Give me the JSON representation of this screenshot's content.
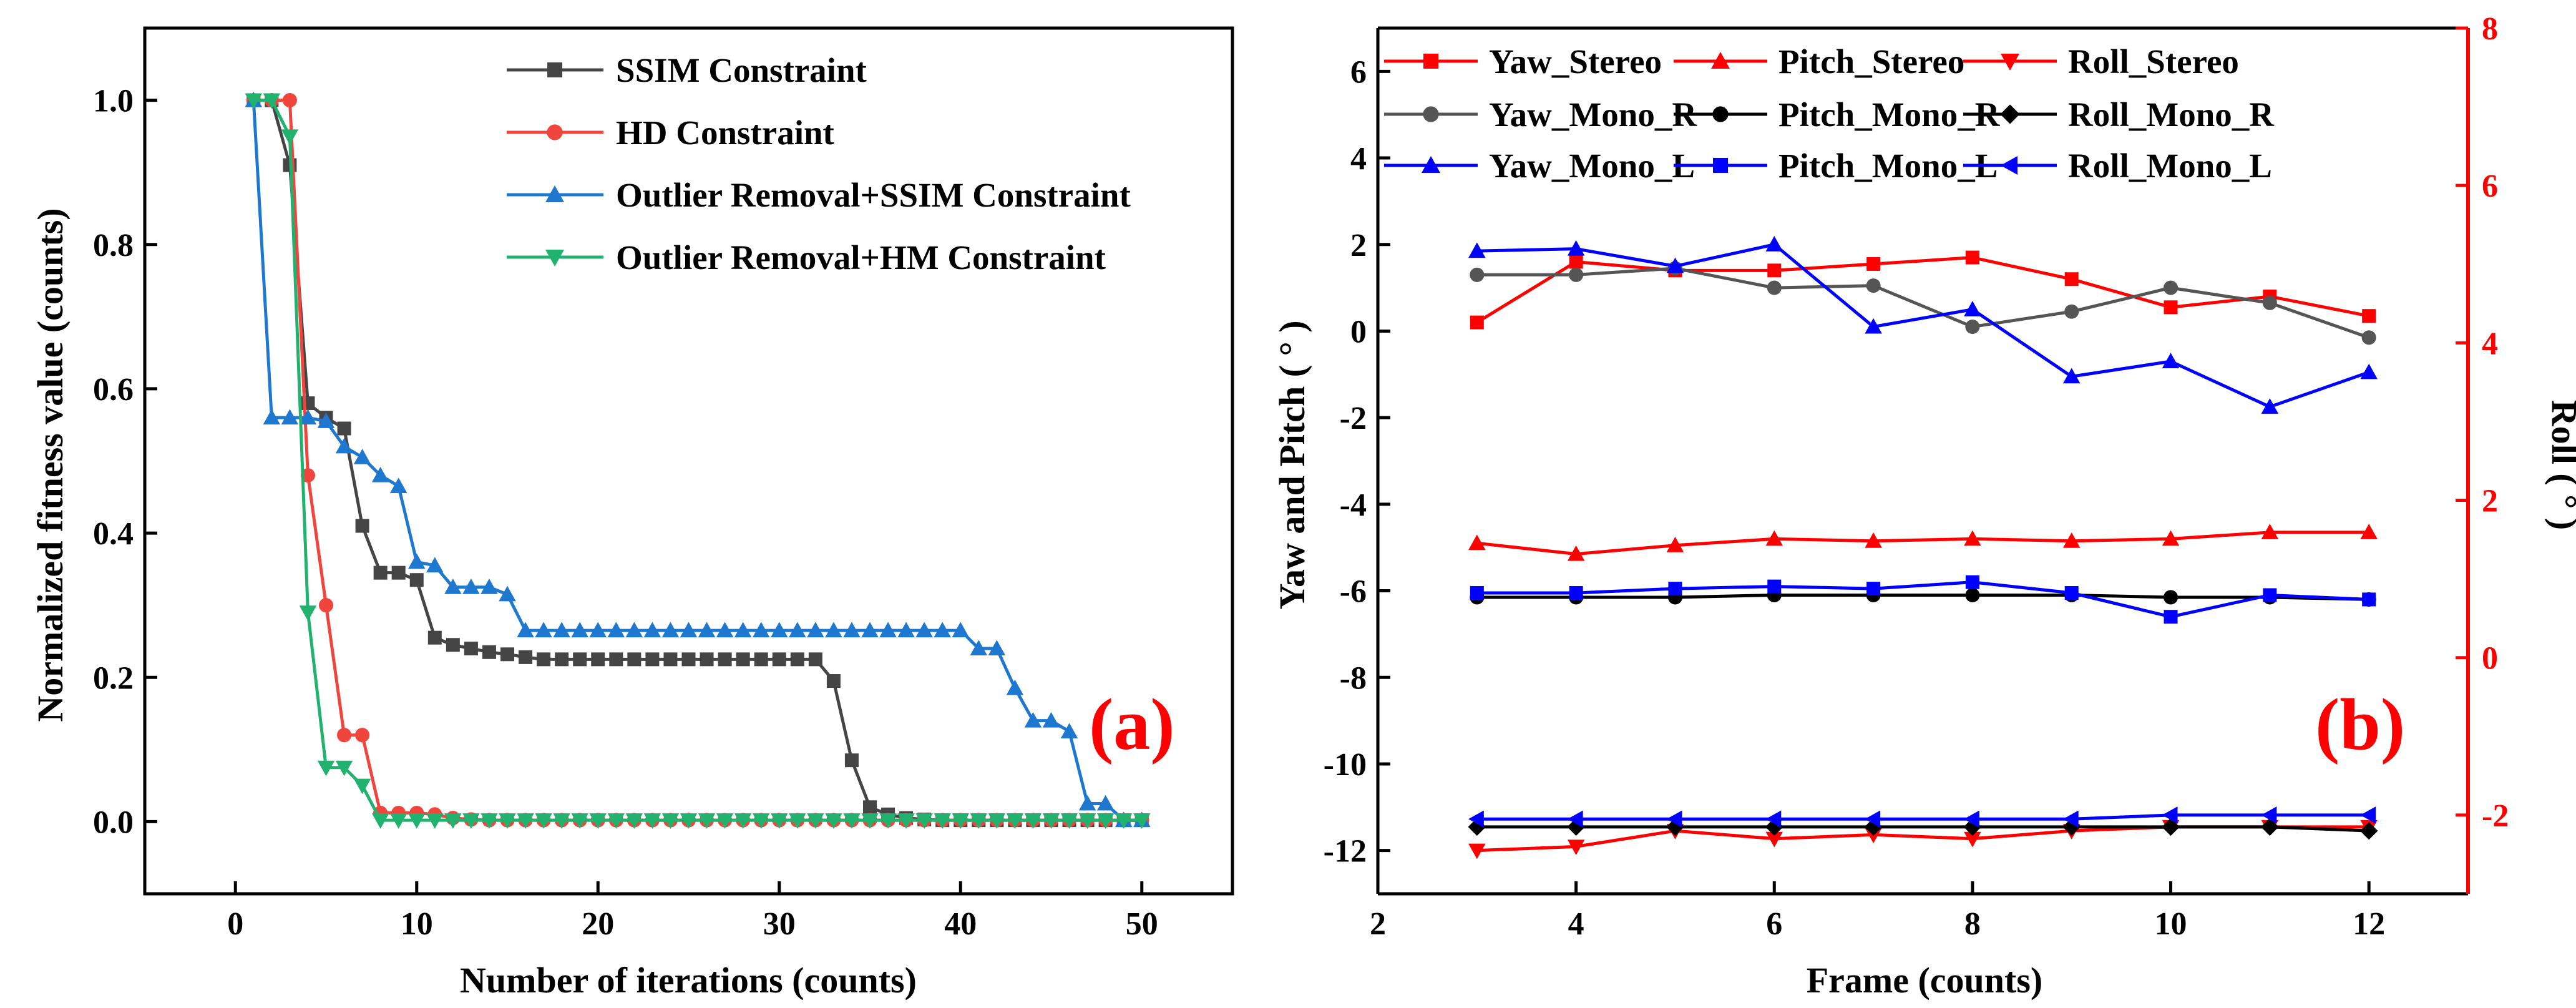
{
  "chart_data": [
    {
      "id": "a",
      "type": "line",
      "panel_label": "(a)",
      "xlabel": "Number of iterations (counts)",
      "ylabel": "Normalized fitness value (counts)",
      "xlim": [
        -5,
        55
      ],
      "ylim": [
        -0.1,
        1.1
      ],
      "xticks": [
        0,
        10,
        20,
        30,
        40,
        50
      ],
      "yticks": [
        0.0,
        0.2,
        0.4,
        0.6,
        0.8,
        1.0
      ],
      "legend_position": "top-right",
      "colors": {
        "panel_label": "#ff0000"
      },
      "series": [
        {
          "name": "SSIM Constraint",
          "color": "#454545",
          "marker": "square",
          "x": [
            1,
            2,
            3,
            4,
            5,
            6,
            7,
            8,
            9,
            10,
            11,
            12,
            13,
            14,
            15,
            16,
            17,
            18,
            19,
            20,
            21,
            22,
            23,
            24,
            25,
            26,
            27,
            28,
            29,
            30,
            31,
            32,
            33,
            34,
            35,
            36,
            37,
            38,
            39,
            40,
            41,
            42,
            43,
            44,
            45,
            46,
            47,
            48,
            49,
            50
          ],
          "y": [
            1.0,
            1.0,
            0.91,
            0.58,
            0.56,
            0.545,
            0.41,
            0.345,
            0.345,
            0.335,
            0.255,
            0.245,
            0.24,
            0.235,
            0.232,
            0.228,
            0.225,
            0.225,
            0.225,
            0.225,
            0.225,
            0.225,
            0.225,
            0.225,
            0.225,
            0.225,
            0.225,
            0.225,
            0.225,
            0.225,
            0.225,
            0.225,
            0.195,
            0.085,
            0.02,
            0.01,
            0.005,
            0.003,
            0.002,
            0.002,
            0.002,
            0.002,
            0.002,
            0.002,
            0.002,
            0.002,
            0.002,
            0.002,
            0.002,
            0.002
          ]
        },
        {
          "name": "HD Constraint",
          "color": "#f0453c",
          "marker": "circle",
          "x": [
            1,
            2,
            3,
            4,
            5,
            6,
            7,
            8,
            9,
            10,
            11,
            12,
            13,
            14,
            15,
            16,
            17,
            18,
            19,
            20,
            21,
            22,
            23,
            24,
            25,
            26,
            27,
            28,
            29,
            30,
            31,
            32,
            33,
            34,
            35,
            36,
            37,
            38,
            39,
            40,
            41,
            42,
            43,
            44,
            45,
            46,
            47,
            48,
            49,
            50
          ],
          "y": [
            1.0,
            1.0,
            1.0,
            0.48,
            0.3,
            0.12,
            0.12,
            0.012,
            0.012,
            0.012,
            0.01,
            0.005,
            0.003,
            0.002,
            0.002,
            0.002,
            0.002,
            0.002,
            0.002,
            0.002,
            0.002,
            0.002,
            0.002,
            0.002,
            0.002,
            0.002,
            0.002,
            0.002,
            0.002,
            0.002,
            0.002,
            0.002,
            0.002,
            0.002,
            0.002,
            0.002,
            0.002,
            0.002,
            0.002,
            0.002,
            0.002,
            0.002,
            0.002,
            0.002,
            0.002,
            0.002,
            0.002,
            0.002,
            0.002,
            0.002
          ]
        },
        {
          "name": "Outlier Removal+SSIM Constraint",
          "color": "#1f78d0",
          "marker": "triangle-up",
          "x": [
            1,
            2,
            3,
            4,
            5,
            6,
            7,
            8,
            9,
            10,
            11,
            12,
            13,
            14,
            15,
            16,
            17,
            18,
            19,
            20,
            21,
            22,
            23,
            24,
            25,
            26,
            27,
            28,
            29,
            30,
            31,
            32,
            33,
            34,
            35,
            36,
            37,
            38,
            39,
            40,
            41,
            42,
            43,
            44,
            45,
            46,
            47,
            48,
            49,
            50
          ],
          "y": [
            1.0,
            0.56,
            0.56,
            0.56,
            0.555,
            0.52,
            0.505,
            0.48,
            0.465,
            0.36,
            0.355,
            0.325,
            0.325,
            0.325,
            0.315,
            0.265,
            0.265,
            0.265,
            0.265,
            0.265,
            0.265,
            0.265,
            0.265,
            0.265,
            0.265,
            0.265,
            0.265,
            0.265,
            0.265,
            0.265,
            0.265,
            0.265,
            0.265,
            0.265,
            0.265,
            0.265,
            0.265,
            0.265,
            0.265,
            0.265,
            0.24,
            0.24,
            0.185,
            0.14,
            0.14,
            0.125,
            0.025,
            0.025,
            0.002,
            0.002
          ]
        },
        {
          "name": "Outlier Removal+HM Constraint",
          "color": "#21b26f",
          "marker": "triangle-down",
          "x": [
            1,
            2,
            3,
            4,
            5,
            6,
            7,
            8,
            9,
            10,
            11,
            12,
            13,
            14,
            15,
            16,
            17,
            18,
            19,
            20,
            21,
            22,
            23,
            24,
            25,
            26,
            27,
            28,
            29,
            30,
            31,
            32,
            33,
            34,
            35,
            36,
            37,
            38,
            39,
            40,
            41,
            42,
            43,
            44,
            45,
            46,
            47,
            48,
            49,
            50
          ],
          "y": [
            1.0,
            1.0,
            0.95,
            0.29,
            0.075,
            0.075,
            0.05,
            0.002,
            0.002,
            0.002,
            0.002,
            0.002,
            0.002,
            0.002,
            0.002,
            0.002,
            0.002,
            0.002,
            0.002,
            0.002,
            0.002,
            0.002,
            0.002,
            0.002,
            0.002,
            0.002,
            0.002,
            0.002,
            0.002,
            0.002,
            0.002,
            0.002,
            0.002,
            0.002,
            0.002,
            0.002,
            0.002,
            0.002,
            0.002,
            0.002,
            0.002,
            0.002,
            0.002,
            0.002,
            0.002,
            0.002,
            0.002,
            0.002,
            0.002,
            0.002
          ]
        }
      ]
    },
    {
      "id": "b",
      "type": "line",
      "panel_label": "(b)",
      "xlabel": "Frame (counts)",
      "ylabel": "Yaw and Pitch ( ° )",
      "y2label": "Roll ( ° )",
      "xlim": [
        2,
        13
      ],
      "ylim": [
        -13,
        7
      ],
      "y2lim": [
        -3,
        8
      ],
      "xticks": [
        2,
        4,
        6,
        8,
        10,
        12
      ],
      "yticks": [
        -12,
        -10,
        -8,
        -6,
        -4,
        -2,
        0,
        2,
        4,
        6
      ],
      "y2ticks": [
        -2,
        0,
        2,
        4,
        6,
        8
      ],
      "legend_position": "top",
      "colors": {
        "panel_label": "#ff0000",
        "right_axis": "#ff0000"
      },
      "series": [
        {
          "name": "Yaw_Stereo",
          "color": "#ff0000",
          "marker": "square",
          "axis": "left",
          "x": [
            3,
            4,
            5,
            6,
            7,
            8,
            9,
            10,
            11,
            12
          ],
          "y": [
            0.2,
            1.6,
            1.4,
            1.4,
            1.55,
            1.7,
            1.2,
            0.55,
            0.8,
            0.35
          ]
        },
        {
          "name": "Pitch_Stereo",
          "color": "#ff0000",
          "marker": "triangle-up",
          "axis": "left",
          "x": [
            3,
            4,
            5,
            6,
            7,
            8,
            9,
            10,
            11,
            12
          ],
          "y": [
            -4.9,
            -5.15,
            -4.95,
            -4.8,
            -4.85,
            -4.8,
            -4.85,
            -4.8,
            -4.65,
            -4.65
          ]
        },
        {
          "name": "Roll_Stereo",
          "color": "#ff0000",
          "marker": "triangle-down",
          "axis": "right",
          "x": [
            3,
            4,
            5,
            6,
            7,
            8,
            9,
            10,
            11,
            12
          ],
          "y": [
            -2.45,
            -2.4,
            -2.2,
            -2.3,
            -2.25,
            -2.3,
            -2.2,
            -2.15,
            -2.15,
            -2.15
          ]
        },
        {
          "name": "Yaw_Mono_R",
          "color": "#555555",
          "marker": "circle",
          "axis": "left",
          "x": [
            3,
            4,
            5,
            6,
            7,
            8,
            9,
            10,
            11,
            12
          ],
          "y": [
            1.3,
            1.3,
            1.45,
            1.0,
            1.05,
            0.1,
            0.45,
            1.0,
            0.65,
            -0.15
          ]
        },
        {
          "name": "Pitch_Mono_R",
          "color": "#000000",
          "marker": "circle",
          "axis": "left",
          "x": [
            3,
            4,
            5,
            6,
            7,
            8,
            9,
            10,
            11,
            12
          ],
          "y": [
            -6.15,
            -6.15,
            -6.15,
            -6.1,
            -6.1,
            -6.1,
            -6.1,
            -6.15,
            -6.15,
            -6.2
          ]
        },
        {
          "name": "Roll_Mono_R",
          "color": "#000000",
          "marker": "diamond",
          "axis": "right",
          "x": [
            3,
            4,
            5,
            6,
            7,
            8,
            9,
            10,
            11,
            12
          ],
          "y": [
            -2.15,
            -2.15,
            -2.15,
            -2.15,
            -2.15,
            -2.15,
            -2.15,
            -2.15,
            -2.15,
            -2.2
          ]
        },
        {
          "name": "Yaw_Mono_L",
          "color": "#0000ff",
          "marker": "triangle-up",
          "axis": "left",
          "x": [
            3,
            4,
            5,
            6,
            7,
            8,
            9,
            10,
            11,
            12
          ],
          "y": [
            1.85,
            1.9,
            1.5,
            2.0,
            0.1,
            0.5,
            -1.05,
            -0.7,
            -1.75,
            -0.95
          ]
        },
        {
          "name": "Pitch_Mono_L",
          "color": "#0000ff",
          "marker": "square",
          "axis": "left",
          "x": [
            3,
            4,
            5,
            6,
            7,
            8,
            9,
            10,
            11,
            12
          ],
          "y": [
            -6.05,
            -6.05,
            -5.95,
            -5.9,
            -5.95,
            -5.8,
            -6.05,
            -6.6,
            -6.1,
            -6.2
          ]
        },
        {
          "name": "Roll_Mono_L",
          "color": "#0000ff",
          "marker": "triangle-left",
          "axis": "right",
          "x": [
            3,
            4,
            5,
            6,
            7,
            8,
            9,
            10,
            11,
            12
          ],
          "y": [
            -2.05,
            -2.05,
            -2.05,
            -2.05,
            -2.05,
            -2.05,
            -2.05,
            -2.0,
            -2.0,
            -2.0
          ]
        }
      ]
    }
  ]
}
